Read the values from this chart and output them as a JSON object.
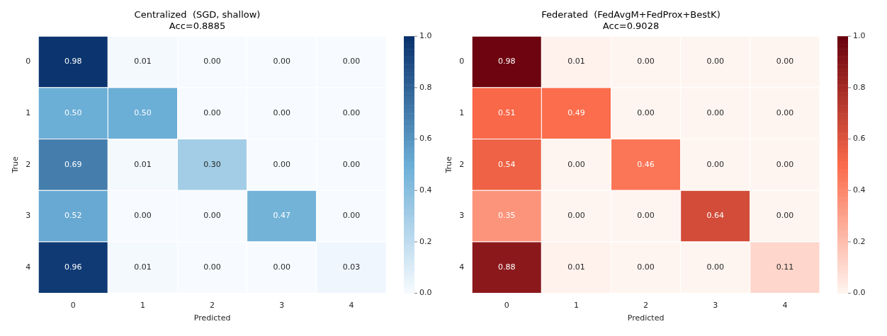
{
  "chart_data": [
    {
      "type": "heatmap",
      "title": "Centralized  (SGD, shallow)",
      "subtitle": "Acc=0.8885",
      "xlabel": "Predicted",
      "ylabel": "True",
      "categories": [
        "0",
        "1",
        "2",
        "3",
        "4"
      ],
      "y_categories": [
        "0",
        "1",
        "2",
        "3",
        "4"
      ],
      "cells": [
        [
          0.98,
          0.01,
          0,
          0,
          0
        ],
        [
          0.5,
          0.5,
          0,
          0,
          0
        ],
        [
          0.69,
          0.01,
          0.3,
          0,
          0
        ],
        [
          0.52,
          0,
          0,
          0.47,
          0
        ],
        [
          0.96,
          0.01,
          0,
          0,
          0.03
        ]
      ],
      "cell_labels": [
        [
          "0.98",
          "0.01",
          "0.00",
          "0.00",
          "0.00"
        ],
        [
          "0.50",
          "0.50",
          "0.00",
          "0.00",
          "0.00"
        ],
        [
          "0.69",
          "0.01",
          "0.30",
          "0.00",
          "0.00"
        ],
        [
          "0.52",
          "0.00",
          "0.00",
          "0.47",
          "0.00"
        ],
        [
          "0.96",
          "0.01",
          "0.00",
          "0.00",
          "0.03"
        ]
      ],
      "clim": [
        0,
        1
      ],
      "cticks": [
        {
          "value": 0,
          "label": "0.0"
        },
        {
          "value": 0.2,
          "label": "0.2"
        },
        {
          "value": 0.4,
          "label": "0.4"
        },
        {
          "value": 0.6,
          "label": "0.6"
        },
        {
          "value": 0.8,
          "label": "0.8"
        },
        {
          "value": 1,
          "label": "1.0"
        }
      ],
      "colors": [
        "#f7fbff",
        "#6baed6",
        "#08306b"
      ]
    },
    {
      "type": "heatmap",
      "title": "Federated  (FedAvgM+FedProx+BestK)",
      "subtitle": "Acc=0.9028",
      "xlabel": "Predicted",
      "ylabel": "True",
      "categories": [
        "0",
        "1",
        "2",
        "3",
        "4"
      ],
      "y_categories": [
        "0",
        "1",
        "2",
        "3",
        "4"
      ],
      "cells": [
        [
          0.98,
          0.01,
          0,
          0,
          0
        ],
        [
          0.51,
          0.49,
          0,
          0,
          0
        ],
        [
          0.54,
          0,
          0.46,
          0,
          0
        ],
        [
          0.35,
          0,
          0,
          0.64,
          0
        ],
        [
          0.88,
          0.01,
          0,
          0,
          0.11
        ]
      ],
      "cell_labels": [
        [
          "0.98",
          "0.01",
          "0.00",
          "0.00",
          "0.00"
        ],
        [
          "0.51",
          "0.49",
          "0.00",
          "0.00",
          "0.00"
        ],
        [
          "0.54",
          "0.00",
          "0.46",
          "0.00",
          "0.00"
        ],
        [
          "0.35",
          "0.00",
          "0.00",
          "0.64",
          "0.00"
        ],
        [
          "0.88",
          "0.01",
          "0.00",
          "0.00",
          "0.11"
        ]
      ],
      "clim": [
        0,
        1
      ],
      "cticks": [
        {
          "value": 0,
          "label": "0.0"
        },
        {
          "value": 0.2,
          "label": "0.2"
        },
        {
          "value": 0.4,
          "label": "0.4"
        },
        {
          "value": 0.6,
          "label": "0.6"
        },
        {
          "value": 0.8,
          "label": "0.8"
        },
        {
          "value": 1,
          "label": "1.0"
        }
      ],
      "colors": [
        "#fff5f0",
        "#fb6a4a",
        "#67000d"
      ]
    }
  ]
}
